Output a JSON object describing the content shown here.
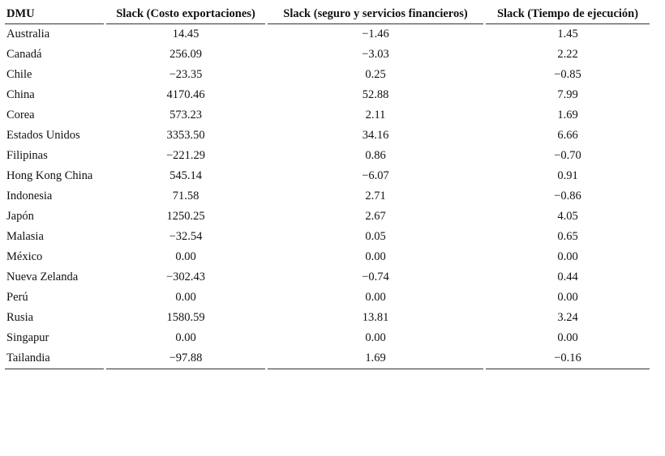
{
  "table": {
    "header": [
      "DMU",
      "Slack (Costo exportaciones)",
      "Slack (seguro y servicios financieros)",
      "Slack (Tiempo de ejecución)"
    ],
    "rows": [
      [
        "Australia",
        "14.45",
        "−1.46",
        "1.45"
      ],
      [
        "Canadá",
        "256.09",
        "−3.03",
        "2.22"
      ],
      [
        "Chile",
        "−23.35",
        "0.25",
        "−0.85"
      ],
      [
        "China",
        "4170.46",
        "52.88",
        "7.99"
      ],
      [
        "Corea",
        "573.23",
        "2.11",
        "1.69"
      ],
      [
        "Estados Unidos",
        "3353.50",
        "34.16",
        "6.66"
      ],
      [
        "Filipinas",
        "−221.29",
        "0.86",
        "−0.70"
      ],
      [
        "Hong Kong China",
        "545.14",
        "−6.07",
        "0.91"
      ],
      [
        "Indonesia",
        "71.58",
        "2.71",
        "−0.86"
      ],
      [
        "Japón",
        "1250.25",
        "2.67",
        "4.05"
      ],
      [
        "Malasia",
        "−32.54",
        "0.05",
        "0.65"
      ],
      [
        "México",
        "0.00",
        "0.00",
        "0.00"
      ],
      [
        "Nueva Zelanda",
        "−302.43",
        "−0.74",
        "0.44"
      ],
      [
        "Perú",
        "0.00",
        "0.00",
        "0.00"
      ],
      [
        "Rusia",
        "1580.59",
        "13.81",
        "3.24"
      ],
      [
        "Singapur",
        "0.00",
        "0.00",
        "0.00"
      ],
      [
        "Tailandia",
        "−97.88",
        "1.69",
        "−0.16"
      ]
    ]
  }
}
